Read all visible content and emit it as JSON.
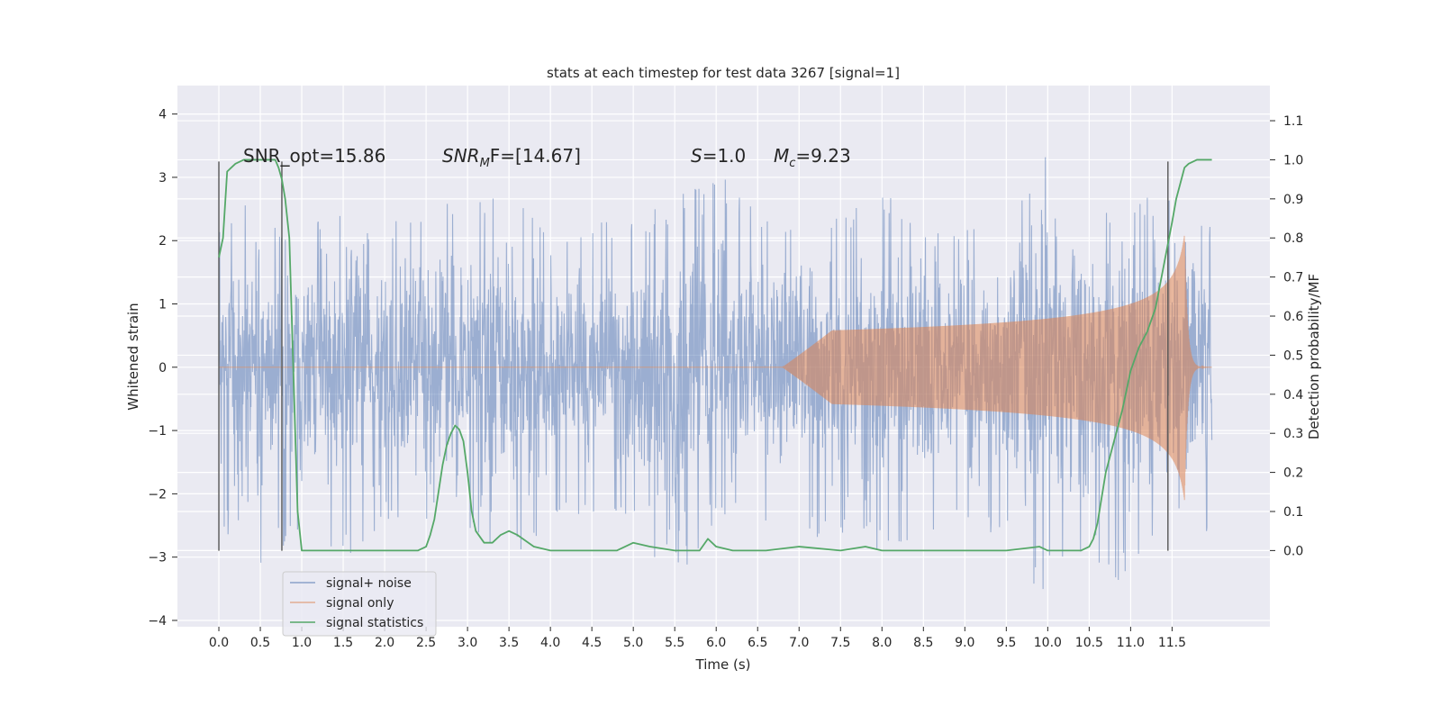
{
  "chart_data": {
    "type": "line",
    "title": "stats at each timestep for test data 3267 [signal=1]",
    "xlabel": "Time (s)",
    "ylabel": "Whitened strain",
    "ylabel_right": "Detection probability/MF",
    "xlim": [
      -0.5,
      12.68
    ],
    "ylim": [
      -4.1,
      4.45
    ],
    "ylim_right": [
      -0.195,
      1.19
    ],
    "x_ticks": [
      "0.0",
      "0.5",
      "1.0",
      "1.5",
      "2.0",
      "2.5",
      "3.0",
      "3.5",
      "4.0",
      "4.5",
      "5.0",
      "5.5",
      "6.0",
      "6.5",
      "7.0",
      "7.5",
      "8.0",
      "8.5",
      "9.0",
      "9.5",
      "10.0",
      "10.5",
      "11.0",
      "11.5"
    ],
    "y_ticks": [
      "4",
      "3",
      "2",
      "1",
      "0",
      "−1",
      "−2",
      "−3",
      "−4"
    ],
    "y_ticks_right": [
      "1.1",
      "1.0",
      "0.9",
      "0.8",
      "0.7",
      "0.6",
      "0.5",
      "0.4",
      "0.3",
      "0.2",
      "0.1",
      "0.0"
    ],
    "grid": true,
    "legend_position": "lower-left",
    "colors": {
      "signal_noise": "#4c72b0",
      "signal_only": "#dd8452",
      "signal_stats": "#55a868",
      "background": "#eaeaf2"
    },
    "annotations": [
      {
        "kind": "plain",
        "text": "SNR_opt=15.86"
      },
      {
        "kind": "mf",
        "base": "SNR",
        "sub": "M",
        "rest": "F=[14.67]"
      },
      {
        "kind": "s",
        "base": "S",
        "rest": "=1.0"
      },
      {
        "kind": "mc",
        "base": "M",
        "sub": "c",
        "rest": "=9.23"
      }
    ],
    "vertical_lines_x": [
      0.0,
      0.76,
      11.45
    ],
    "vertical_lines_range": [
      -2.9,
      3.25
    ],
    "series": [
      {
        "name": "signal+ noise",
        "description_envelope": {
          "x_range": [
            0.0,
            11.98
          ],
          "envelope_upper": [
            [
              0.0,
              2.2
            ],
            [
              0.3,
              2.6
            ],
            [
              0.5,
              2.5
            ],
            [
              0.8,
              2.3
            ],
            [
              1.2,
              2.4
            ],
            [
              1.7,
              3.6
            ],
            [
              2.0,
              2.3
            ],
            [
              2.5,
              2.7
            ],
            [
              2.8,
              2.8
            ],
            [
              3.5,
              2.9
            ],
            [
              4.0,
              2.2
            ],
            [
              4.5,
              2.3
            ],
            [
              5.0,
              2.4
            ],
            [
              5.5,
              2.6
            ],
            [
              5.9,
              3.4
            ],
            [
              6.5,
              2.4
            ],
            [
              7.0,
              2.3
            ],
            [
              7.5,
              2.6
            ],
            [
              8.0,
              2.8
            ],
            [
              8.5,
              2.4
            ],
            [
              9.0,
              2.2
            ],
            [
              9.5,
              2.5
            ],
            [
              10.0,
              3.5
            ],
            [
              10.5,
              2.4
            ],
            [
              11.0,
              2.6
            ],
            [
              11.5,
              2.9
            ],
            [
              11.98,
              2.2
            ]
          ],
          "envelope_lower": [
            [
              0.0,
              -2.5
            ],
            [
              0.5,
              -3.2
            ],
            [
              1.0,
              -2.6
            ],
            [
              1.7,
              -3.3
            ],
            [
              2.0,
              -2.5
            ],
            [
              2.5,
              -2.4
            ],
            [
              3.0,
              -2.8
            ],
            [
              3.5,
              -3.3
            ],
            [
              4.0,
              -2.5
            ],
            [
              4.5,
              -2.4
            ],
            [
              5.0,
              -2.6
            ],
            [
              5.5,
              -3.4
            ],
            [
              6.0,
              -2.5
            ],
            [
              6.5,
              -2.5
            ],
            [
              7.0,
              -2.6
            ],
            [
              7.5,
              -2.8
            ],
            [
              8.0,
              -2.9
            ],
            [
              8.5,
              -2.7
            ],
            [
              9.0,
              -2.5
            ],
            [
              9.5,
              -2.8
            ],
            [
              9.8,
              -3.7
            ],
            [
              10.5,
              -2.8
            ],
            [
              10.8,
              -3.6
            ],
            [
              11.5,
              -2.6
            ],
            [
              11.98,
              -2.7
            ]
          ]
        }
      },
      {
        "name": "signal only",
        "chirp": {
          "start_x": 6.8,
          "end_x": 11.65,
          "peak_amplitude": 2.1,
          "ringdown_end_x": 11.98
        }
      },
      {
        "name": "signal statistics",
        "axis": "right",
        "x": [
          0.0,
          0.05,
          0.1,
          0.2,
          0.3,
          0.5,
          0.68,
          0.72,
          0.76,
          0.8,
          0.85,
          0.9,
          0.95,
          1.0,
          1.1,
          1.5,
          2.0,
          2.4,
          2.5,
          2.55,
          2.6,
          2.65,
          2.7,
          2.75,
          2.8,
          2.85,
          2.9,
          2.95,
          3.0,
          3.05,
          3.1,
          3.2,
          3.3,
          3.4,
          3.5,
          3.6,
          3.8,
          4.0,
          4.5,
          4.8,
          5.0,
          5.2,
          5.5,
          5.8,
          5.9,
          6.0,
          6.2,
          6.6,
          7.0,
          7.5,
          7.8,
          8.0,
          8.5,
          9.0,
          9.5,
          9.9,
          10.0,
          10.2,
          10.4,
          10.5,
          10.55,
          10.6,
          10.7,
          10.8,
          10.9,
          11.0,
          11.1,
          11.2,
          11.3,
          11.4,
          11.5,
          11.55,
          11.6,
          11.65,
          11.7,
          11.8,
          11.9,
          11.98
        ],
        "values": [
          0.75,
          0.8,
          0.97,
          0.99,
          1.0,
          1.0,
          1.0,
          0.98,
          0.95,
          0.9,
          0.8,
          0.45,
          0.1,
          0.0,
          0.0,
          0.0,
          0.0,
          0.0,
          0.01,
          0.04,
          0.08,
          0.15,
          0.22,
          0.27,
          0.3,
          0.32,
          0.31,
          0.28,
          0.2,
          0.1,
          0.05,
          0.02,
          0.02,
          0.04,
          0.05,
          0.04,
          0.01,
          0.0,
          0.0,
          0.0,
          0.02,
          0.01,
          0.0,
          0.0,
          0.03,
          0.01,
          0.0,
          0.0,
          0.01,
          0.0,
          0.01,
          0.0,
          0.0,
          0.0,
          0.0,
          0.01,
          0.0,
          0.0,
          0.0,
          0.01,
          0.03,
          0.07,
          0.2,
          0.28,
          0.36,
          0.46,
          0.52,
          0.56,
          0.62,
          0.73,
          0.84,
          0.9,
          0.94,
          0.98,
          0.99,
          1.0,
          1.0,
          1.0
        ]
      }
    ]
  }
}
